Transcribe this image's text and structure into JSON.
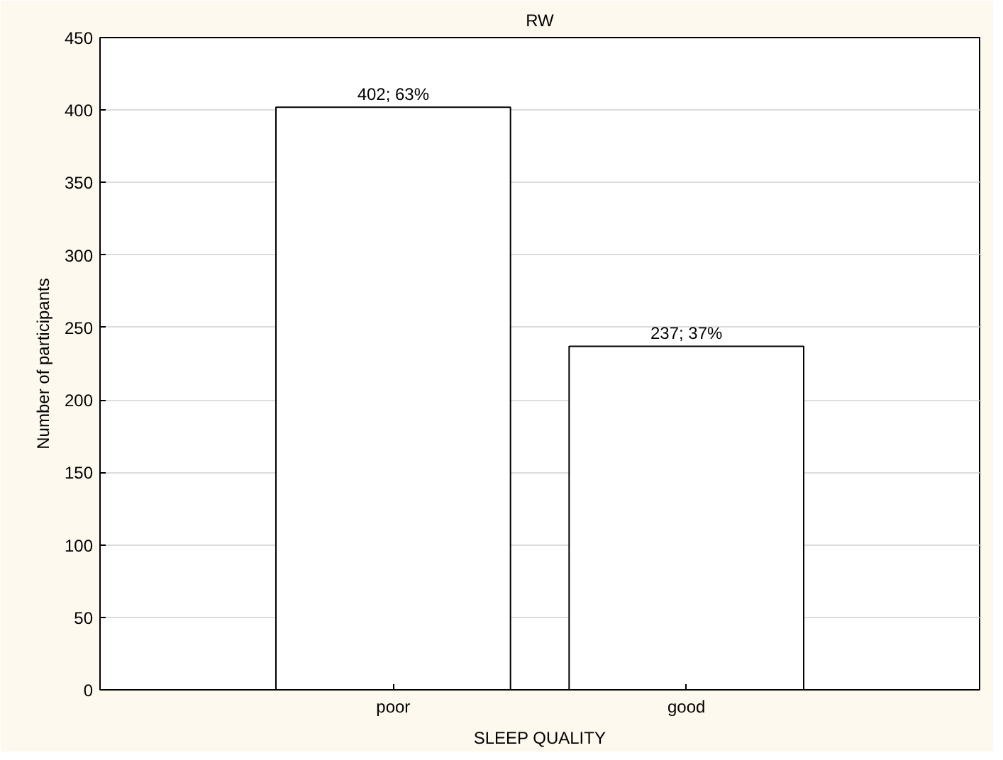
{
  "chart_data": {
    "type": "bar",
    "title": "RW",
    "xlabel": "SLEEP QUALITY",
    "ylabel": "Number of participants",
    "categories": [
      "poor",
      "good"
    ],
    "values": [
      402,
      237
    ],
    "value_labels": [
      "402; 63%",
      "237; 37%"
    ],
    "color": "#ffffff",
    "ylim": [
      0,
      450
    ],
    "yticks": [
      0,
      50,
      100,
      150,
      200,
      250,
      300,
      350,
      400,
      450
    ],
    "grid": "y"
  }
}
